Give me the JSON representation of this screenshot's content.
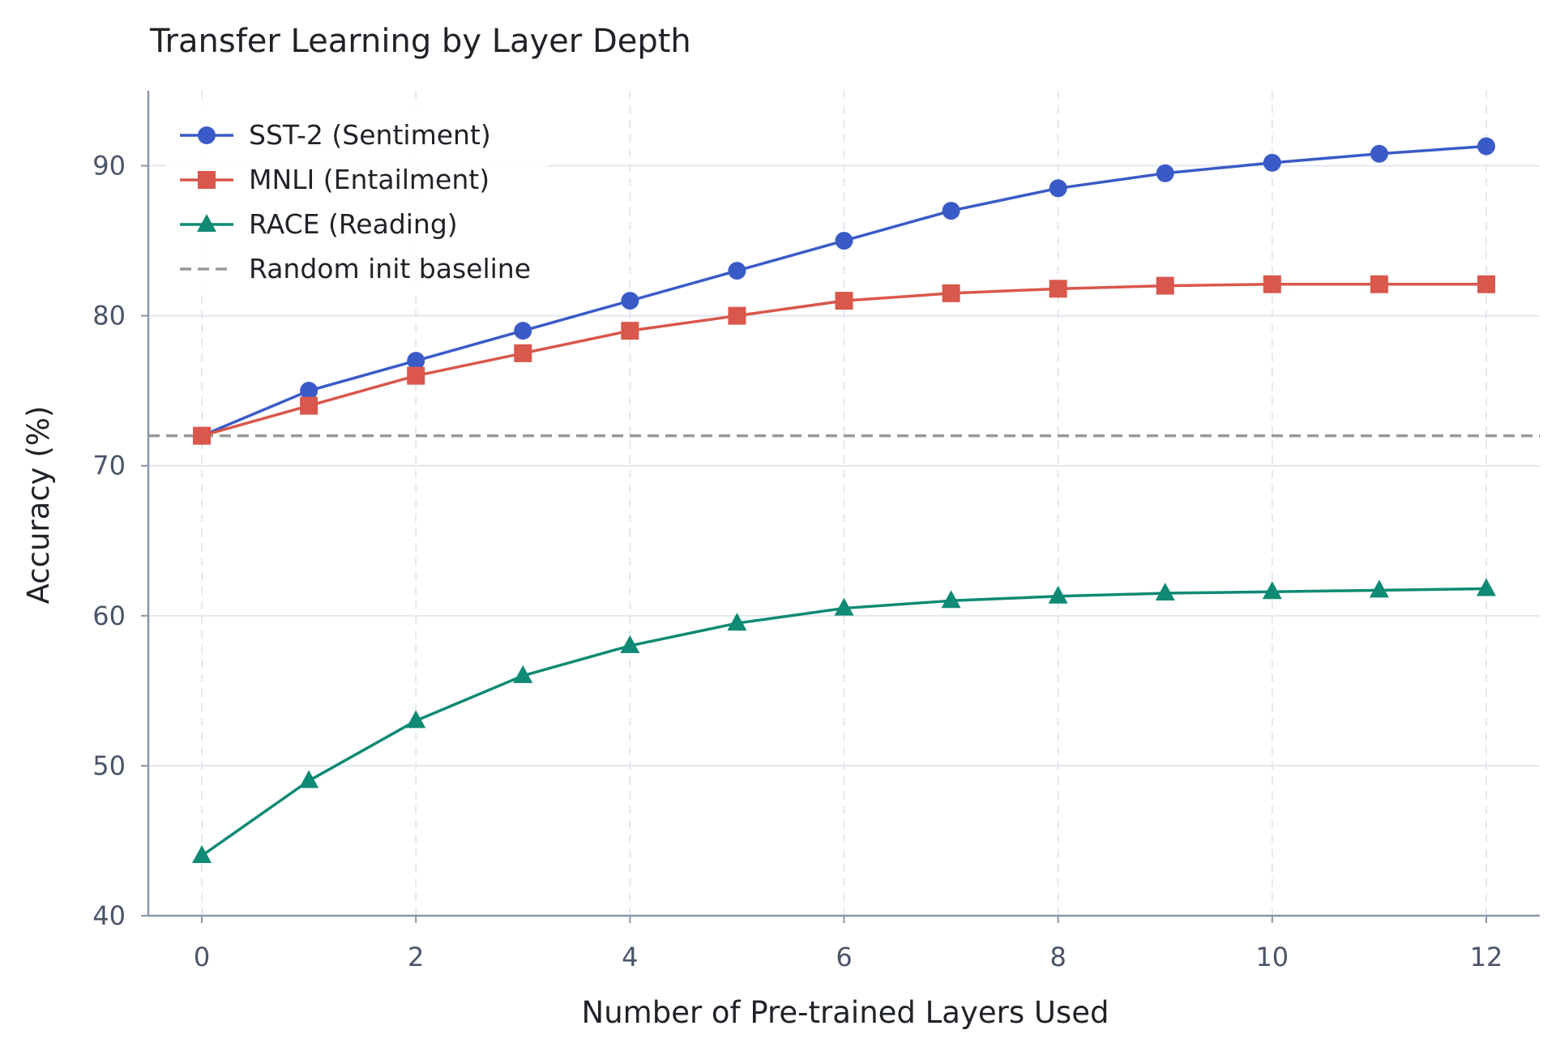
{
  "chart_data": {
    "type": "line",
    "title": "Transfer Learning by Layer Depth",
    "xlabel": "Number of Pre-trained Layers Used",
    "ylabel": "Accuracy (%)",
    "x": [
      0,
      1,
      2,
      3,
      4,
      5,
      6,
      7,
      8,
      9,
      10,
      11,
      12
    ],
    "xlim": [
      -0.5,
      12.5
    ],
    "ylim": [
      40,
      95
    ],
    "xticks": [
      "0",
      "2",
      "4",
      "6",
      "8",
      "10",
      "12"
    ],
    "yticks": [
      "40",
      "50",
      "60",
      "70",
      "80",
      "90"
    ],
    "grid": "x dashed, y solid",
    "legend_position": "top-left",
    "series": [
      {
        "name": "SST-2 (Sentiment)",
        "marker": "circle",
        "color": "#3a5bc7",
        "values": [
          72,
          75,
          77,
          79,
          81,
          83,
          85,
          87,
          88.5,
          89.5,
          90.2,
          90.8,
          91.3
        ]
      },
      {
        "name": "MNLI (Entailment)",
        "marker": "square",
        "color": "#d9574b",
        "values": [
          72,
          74,
          76,
          77.5,
          79,
          80,
          81,
          81.5,
          81.8,
          82,
          82.1,
          82.1,
          82.1
        ]
      },
      {
        "name": "RACE (Reading)",
        "marker": "triangle",
        "color": "#0f8a74",
        "values": [
          44,
          49,
          53,
          56,
          58,
          59.5,
          60.5,
          61,
          61.3,
          61.5,
          61.6,
          61.7,
          61.8
        ]
      }
    ],
    "baseline": {
      "name": "Random init baseline",
      "value": 72,
      "color": "#999999",
      "style": "dashed"
    }
  }
}
